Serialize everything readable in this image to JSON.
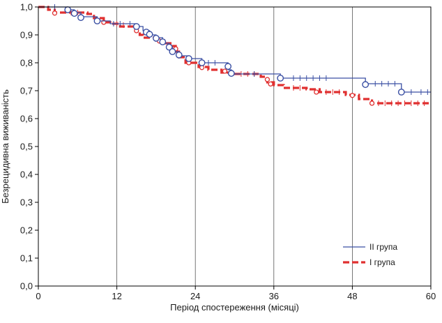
{
  "chart_data": {
    "type": "line",
    "subtype": "kaplan-meier",
    "xlabel": "Період спостереження (місяці)",
    "ylabel": "Безрецидивна виживаність",
    "xlim": [
      0,
      60
    ],
    "ylim": [
      0,
      1.0
    ],
    "x_ticks": [
      "0",
      "12",
      "24",
      "36",
      "48",
      "60"
    ],
    "y_ticks": [
      "0,0",
      "0,1",
      "0,2",
      "0,3",
      "0,4",
      "0,5",
      "0,6",
      "0,7",
      "0,8",
      "0,9",
      "1,0"
    ],
    "grid": "vertical",
    "legend_position": "bottom-right",
    "series": [
      {
        "name": "II група",
        "color": "#3a4fa3",
        "style": "solid",
        "steps": [
          [
            0,
            1.0
          ],
          [
            4.5,
            0.99
          ],
          [
            5.5,
            0.98
          ],
          [
            6.5,
            0.965
          ],
          [
            9,
            0.95
          ],
          [
            11,
            0.94
          ],
          [
            15,
            0.93
          ],
          [
            16,
            0.915
          ],
          [
            17,
            0.9
          ],
          [
            18,
            0.89
          ],
          [
            19,
            0.87
          ],
          [
            20,
            0.855
          ],
          [
            20.5,
            0.84
          ],
          [
            21.5,
            0.825
          ],
          [
            23,
            0.815
          ],
          [
            25,
            0.8
          ],
          [
            29,
            0.775
          ],
          [
            29.5,
            0.76
          ],
          [
            37,
            0.745
          ],
          [
            50,
            0.725
          ],
          [
            55.5,
            0.695
          ],
          [
            60,
            0.695
          ]
        ],
        "circles": [
          [
            4.5,
            0.99
          ],
          [
            5.5,
            0.977
          ],
          [
            6.5,
            0.962
          ],
          [
            9,
            0.95
          ],
          [
            15,
            0.93
          ],
          [
            16.5,
            0.91
          ],
          [
            17,
            0.902
          ],
          [
            18,
            0.888
          ],
          [
            19,
            0.875
          ],
          [
            20,
            0.856
          ],
          [
            20.5,
            0.84
          ],
          [
            21.5,
            0.828
          ],
          [
            23,
            0.815
          ],
          [
            25,
            0.8
          ],
          [
            29,
            0.787
          ],
          [
            29.5,
            0.762
          ],
          [
            37,
            0.745
          ],
          [
            50,
            0.722
          ],
          [
            55.5,
            0.695
          ]
        ],
        "censor": [
          [
            2.5,
            1.0
          ],
          [
            11.5,
            0.94
          ],
          [
            12.5,
            0.94
          ],
          [
            14,
            0.94
          ],
          [
            26,
            0.8
          ],
          [
            27,
            0.8
          ],
          [
            33,
            0.76
          ],
          [
            39,
            0.745
          ],
          [
            40,
            0.745
          ],
          [
            41,
            0.745
          ],
          [
            42,
            0.745
          ],
          [
            43,
            0.745
          ],
          [
            44,
            0.745
          ],
          [
            51.5,
            0.725
          ],
          [
            52.5,
            0.725
          ],
          [
            53.5,
            0.725
          ],
          [
            54.5,
            0.725
          ],
          [
            57,
            0.695
          ],
          [
            58.5,
            0.695
          ],
          [
            59.5,
            0.695
          ]
        ]
      },
      {
        "name": "І група",
        "color": "#e03030",
        "style": "dashed",
        "steps": [
          [
            0,
            1.0
          ],
          [
            1.5,
            0.99
          ],
          [
            2.5,
            0.98
          ],
          [
            7.5,
            0.975
          ],
          [
            8.5,
            0.96
          ],
          [
            10,
            0.945
          ],
          [
            11,
            0.94
          ],
          [
            12.5,
            0.93
          ],
          [
            15,
            0.915
          ],
          [
            15.5,
            0.9
          ],
          [
            16,
            0.89
          ],
          [
            18,
            0.88
          ],
          [
            19.5,
            0.87
          ],
          [
            20.5,
            0.86
          ],
          [
            21,
            0.84
          ],
          [
            21.5,
            0.82
          ],
          [
            22.5,
            0.8
          ],
          [
            24.5,
            0.785
          ],
          [
            26,
            0.775
          ],
          [
            28,
            0.765
          ],
          [
            30,
            0.76
          ],
          [
            34,
            0.75
          ],
          [
            35,
            0.73
          ],
          [
            36,
            0.72
          ],
          [
            37.5,
            0.71
          ],
          [
            41,
            0.705
          ],
          [
            43,
            0.695
          ],
          [
            47,
            0.685
          ],
          [
            49,
            0.67
          ],
          [
            51,
            0.655
          ],
          [
            60,
            0.655
          ]
        ],
        "circles": [
          [
            2.5,
            0.978
          ],
          [
            10,
            0.945
          ],
          [
            15,
            0.915
          ],
          [
            18.5,
            0.878
          ],
          [
            21,
            0.85
          ],
          [
            21.5,
            0.825
          ],
          [
            23,
            0.8
          ],
          [
            25,
            0.783
          ],
          [
            28.5,
            0.77
          ],
          [
            35,
            0.74
          ],
          [
            35.5,
            0.724
          ],
          [
            42.5,
            0.695
          ],
          [
            48,
            0.683
          ],
          [
            51,
            0.655
          ]
        ],
        "censor": [
          [
            5,
            0.98
          ],
          [
            6,
            0.98
          ],
          [
            12,
            0.94
          ],
          [
            13,
            0.935
          ],
          [
            31,
            0.76
          ],
          [
            32,
            0.76
          ],
          [
            33,
            0.76
          ],
          [
            39,
            0.71
          ],
          [
            40,
            0.71
          ],
          [
            44,
            0.695
          ],
          [
            45,
            0.695
          ],
          [
            46,
            0.695
          ],
          [
            52,
            0.655
          ],
          [
            53,
            0.655
          ],
          [
            54,
            0.655
          ],
          [
            55,
            0.655
          ],
          [
            56,
            0.655
          ],
          [
            57,
            0.655
          ],
          [
            58,
            0.655
          ],
          [
            59,
            0.655
          ]
        ]
      }
    ]
  }
}
